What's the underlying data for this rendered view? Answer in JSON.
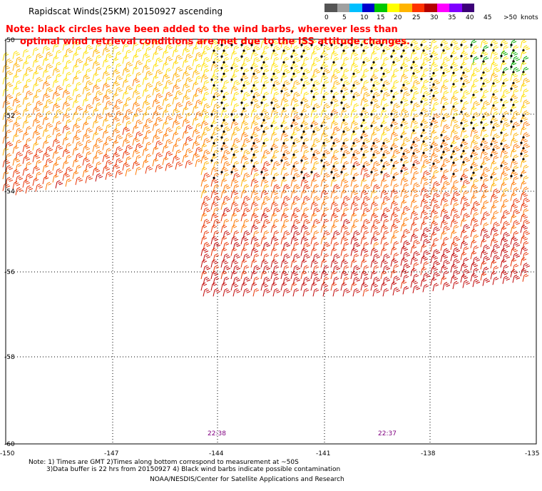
{
  "title": "Rapidscat Winds(25KM) 20150927 ascending",
  "note": [
    "Note: black circles have been added to the wind barbs, wherever less than",
    "optimal wind retrieval conditions are met due to the ISS attitude changes."
  ],
  "legend": {
    "unit": "knots",
    "labels": [
      "0",
      "5",
      "10",
      "15",
      "20",
      "25",
      "30",
      "35",
      "40",
      "45",
      ">50"
    ],
    "colors": [
      "#4d4d4d",
      "#9a9a9a",
      "#00aaff",
      "#0000ff",
      "#00dd00",
      "#ffff00",
      "#ffaa00",
      "#ff0000",
      "#aa0000",
      "#ff00ff",
      "#6600cc"
    ],
    "scale_colors": [
      "#555555",
      "#a0a0a0",
      "#00bfff",
      "#0000cd",
      "#00c800",
      "#ffff00",
      "#ffb400",
      "#ff3300",
      "#b40000",
      "#ff00ff",
      "#7f00ff",
      "#3c0078"
    ]
  },
  "map": {
    "lat_labels": [
      "-50",
      "-52",
      "-54",
      "-56",
      "-58",
      "-60"
    ],
    "lon_labels": [
      "-150",
      "-147",
      "-144",
      "-141",
      "-138",
      "-135"
    ],
    "times": [
      "22:38",
      "22:37"
    ]
  },
  "footnotes": [
    "Note: 1) Times are GMT 2)Times along bottom correspond to measurement at ~50S",
    "3)Data buffer is 22 hrs from 20150927 4) Black wind barbs indicate possible contamination"
  ],
  "credit": "NOAA/NESDIS/Center for Satellite Applications and Research"
}
